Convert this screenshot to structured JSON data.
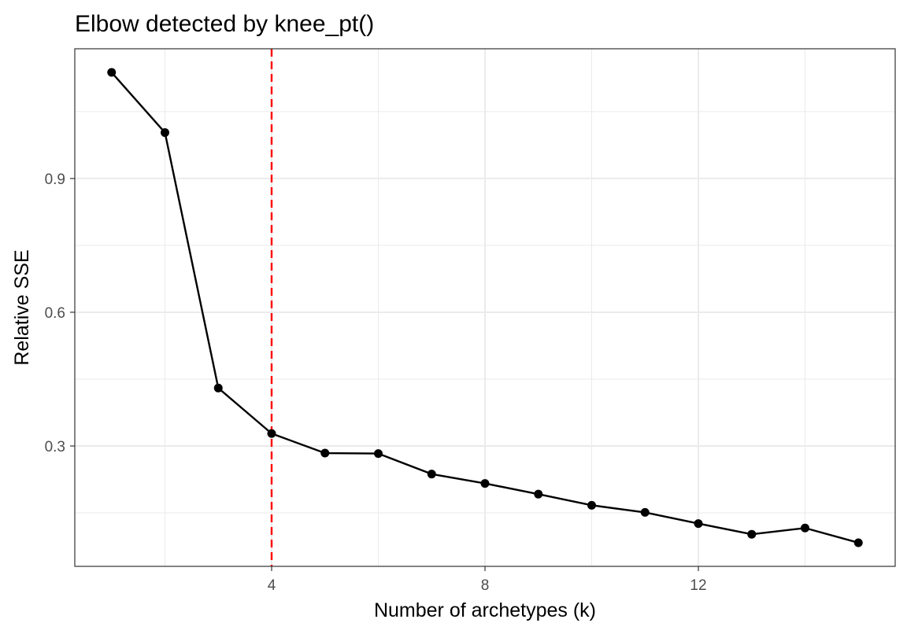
{
  "chart_data": {
    "type": "line",
    "title": "Elbow detected by knee_pt()",
    "xlabel": "Number of archetypes (k)",
    "ylabel": "Relative SSE",
    "x": [
      1,
      2,
      3,
      4,
      5,
      6,
      7,
      8,
      9,
      10,
      11,
      12,
      13,
      14,
      15
    ],
    "y": [
      1.138,
      1.003,
      0.43,
      0.328,
      0.284,
      0.283,
      0.237,
      0.216,
      0.192,
      0.167,
      0.151,
      0.126,
      0.102,
      0.116,
      0.083
    ],
    "xlim": [
      0.31,
      15.69
    ],
    "ylim": [
      0.03,
      1.191
    ],
    "x_ticks": [
      4,
      8,
      12
    ],
    "x_minor_ticks": [
      2,
      6,
      10,
      14
    ],
    "y_ticks": [
      0.3,
      0.6,
      0.9
    ],
    "y_minor_ticks": [
      0.15,
      0.45,
      0.75,
      1.05
    ],
    "vline": {
      "x": 4,
      "color": "#ff0000",
      "style": "dashed"
    },
    "grid": true,
    "theme": "bw",
    "line_color": "#000000",
    "point_color": "#000000",
    "grid_color": "#ebebeb",
    "panel_border_color": "#333333"
  }
}
